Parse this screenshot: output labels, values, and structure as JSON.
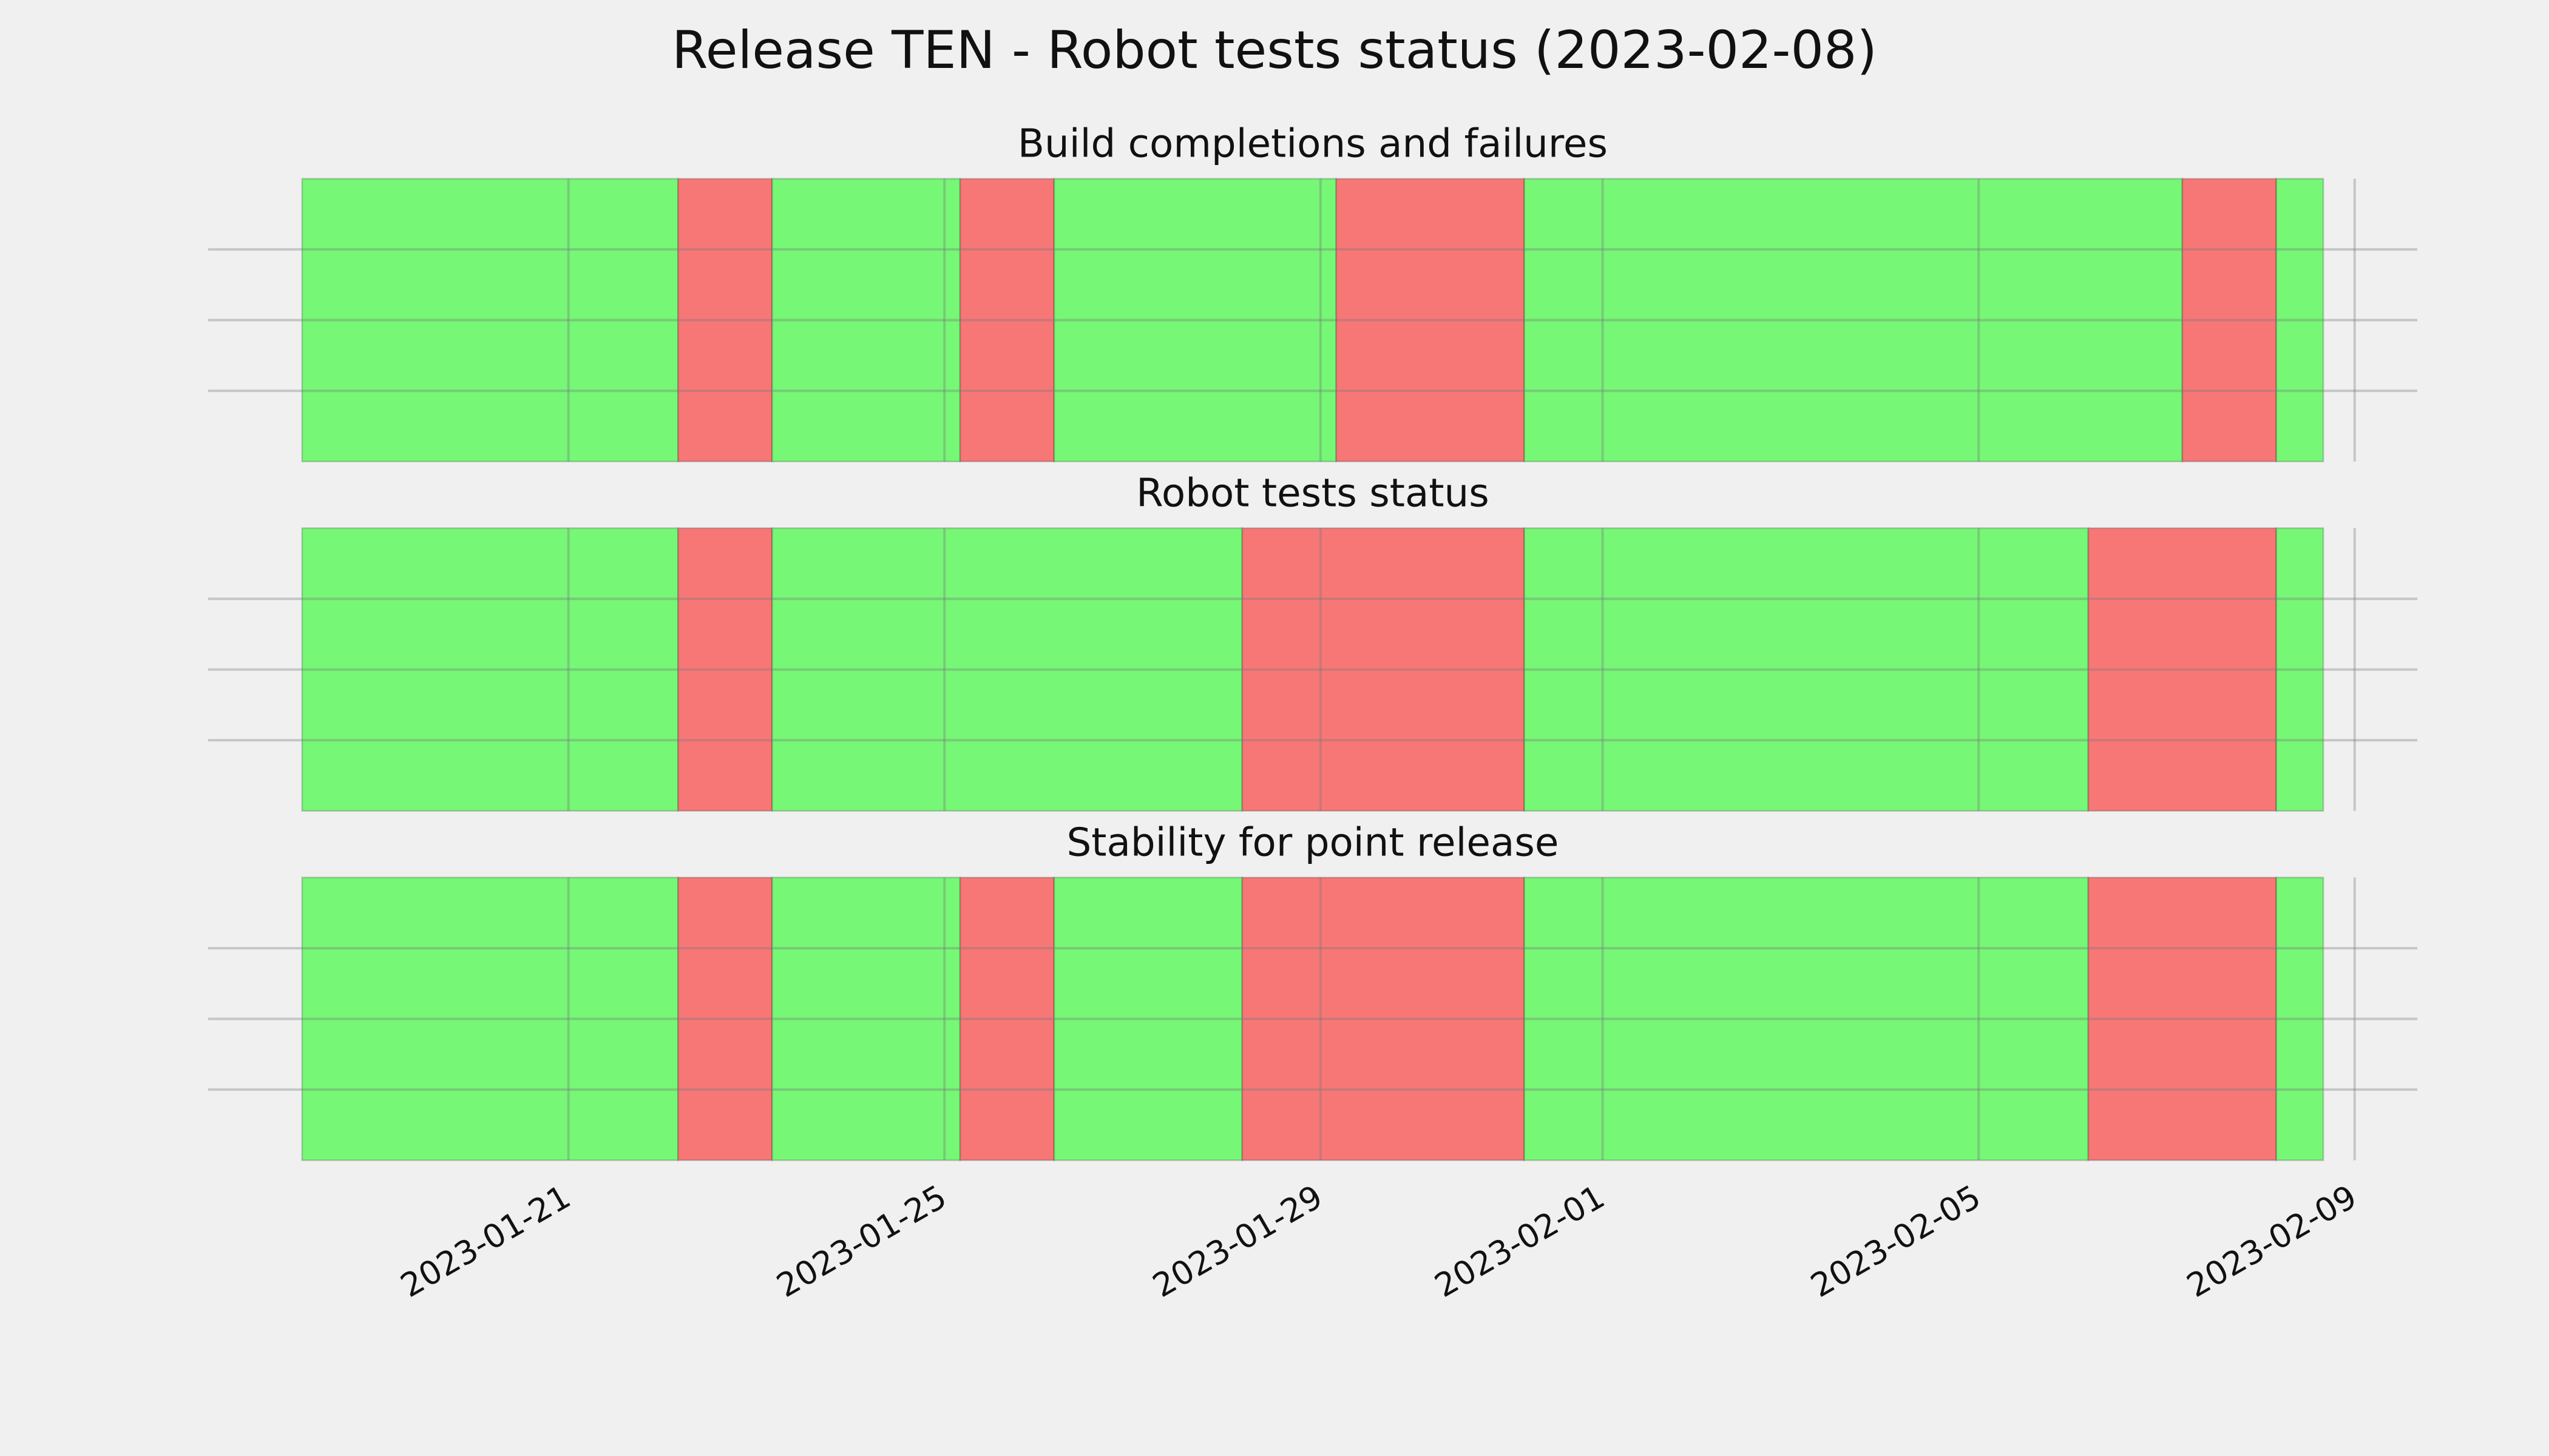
{
  "title": "Release TEN - Robot tests status (2023-02-08)",
  "chart_data": [
    {
      "type": "timeline",
      "title": "Build completions and failures",
      "xlim": [
        "2023-01-17T04:00",
        "2023-02-09T16:00"
      ],
      "xticks": [
        "2023-01-21",
        "2023-01-25",
        "2023-01-29",
        "2023-02-01",
        "2023-02-05",
        "2023-02-09"
      ],
      "ylim": [
        0,
        1
      ],
      "yticks": [
        0.25,
        0.5,
        0.75
      ],
      "grid": true,
      "spans": [
        {
          "x": [
            "2023-01-18T04:00",
            "2023-01-22T04:00"
          ],
          "color": "#76f776"
        },
        {
          "x": [
            "2023-01-22T04:00",
            "2023-01-23T04:00"
          ],
          "color": "#f77777"
        },
        {
          "x": [
            "2023-01-23T04:00",
            "2023-01-25T04:00"
          ],
          "color": "#76f776"
        },
        {
          "x": [
            "2023-01-25T04:00",
            "2023-01-26T04:00"
          ],
          "color": "#f77777"
        },
        {
          "x": [
            "2023-01-26T04:00",
            "2023-01-29T04:00"
          ],
          "color": "#76f776"
        },
        {
          "x": [
            "2023-01-29T04:00",
            "2023-01-31T04:00"
          ],
          "color": "#f77777"
        },
        {
          "x": [
            "2023-01-31T04:00",
            "2023-02-07T04:00"
          ],
          "color": "#76f776"
        },
        {
          "x": [
            "2023-02-07T04:00",
            "2023-02-08T04:00"
          ],
          "color": "#f77777"
        },
        {
          "x": [
            "2023-02-08T04:00",
            "2023-02-08T16:00"
          ],
          "color": "#76f776"
        }
      ]
    },
    {
      "type": "timeline",
      "title": "Robot tests status",
      "xlim": [
        "2023-01-17T04:00",
        "2023-02-09T16:00"
      ],
      "xticks": [
        "2023-01-21",
        "2023-01-25",
        "2023-01-29",
        "2023-02-01",
        "2023-02-05",
        "2023-02-09"
      ],
      "ylim": [
        0,
        1
      ],
      "yticks": [
        0.25,
        0.5,
        0.75
      ],
      "grid": true,
      "spans": [
        {
          "x": [
            "2023-01-18T04:00",
            "2023-01-22T04:00"
          ],
          "color": "#76f776"
        },
        {
          "x": [
            "2023-01-22T04:00",
            "2023-01-23T04:00"
          ],
          "color": "#f77777"
        },
        {
          "x": [
            "2023-01-23T04:00",
            "2023-01-28T04:00"
          ],
          "color": "#76f776"
        },
        {
          "x": [
            "2023-01-28T04:00",
            "2023-01-31T04:00"
          ],
          "color": "#f77777"
        },
        {
          "x": [
            "2023-01-31T04:00",
            "2023-02-06T04:00"
          ],
          "color": "#76f776"
        },
        {
          "x": [
            "2023-02-06T04:00",
            "2023-02-08T04:00"
          ],
          "color": "#f77777"
        },
        {
          "x": [
            "2023-02-08T04:00",
            "2023-02-08T16:00"
          ],
          "color": "#76f776"
        }
      ]
    },
    {
      "type": "timeline",
      "title": "Stability for point release",
      "xlim": [
        "2023-01-17T04:00",
        "2023-02-09T16:00"
      ],
      "xticks": [
        "2023-01-21",
        "2023-01-25",
        "2023-01-29",
        "2023-02-01",
        "2023-02-05",
        "2023-02-09"
      ],
      "ylim": [
        0,
        1
      ],
      "yticks": [
        0.25,
        0.5,
        0.75
      ],
      "grid": true,
      "spans": [
        {
          "x": [
            "2023-01-18T04:00",
            "2023-01-22T04:00"
          ],
          "color": "#76f776"
        },
        {
          "x": [
            "2023-01-22T04:00",
            "2023-01-23T04:00"
          ],
          "color": "#f77777"
        },
        {
          "x": [
            "2023-01-23T04:00",
            "2023-01-25T04:00"
          ],
          "color": "#76f776"
        },
        {
          "x": [
            "2023-01-25T04:00",
            "2023-01-26T04:00"
          ],
          "color": "#f77777"
        },
        {
          "x": [
            "2023-01-26T04:00",
            "2023-01-28T04:00"
          ],
          "color": "#76f776"
        },
        {
          "x": [
            "2023-01-28T04:00",
            "2023-01-31T04:00"
          ],
          "color": "#f77777"
        },
        {
          "x": [
            "2023-01-31T04:00",
            "2023-02-06T04:00"
          ],
          "color": "#76f776"
        },
        {
          "x": [
            "2023-02-06T04:00",
            "2023-02-08T04:00"
          ],
          "color": "#f77777"
        },
        {
          "x": [
            "2023-02-08T04:00",
            "2023-02-08T16:00"
          ],
          "color": "#76f776"
        }
      ]
    }
  ]
}
